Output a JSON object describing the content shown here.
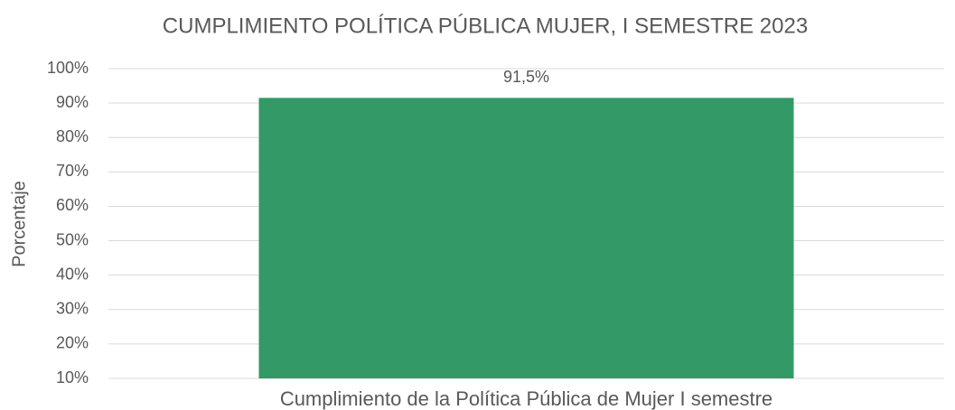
{
  "chart_data": {
    "type": "bar",
    "title": "CUMPLIMIENTO POLÍTICA PÚBLICA MUJER, I SEMESTRE 2023",
    "ylabel": "Porcentaje",
    "categories": [
      "Cumplimiento de la Política Pública de Mujer I semestre"
    ],
    "values": [
      91.5
    ],
    "value_labels": [
      "91,5%"
    ],
    "color": "#339966",
    "ylim": [
      10,
      100
    ],
    "yticks": [
      {
        "value": 10,
        "label": "10%"
      },
      {
        "value": 20,
        "label": "20%"
      },
      {
        "value": 30,
        "label": "30%"
      },
      {
        "value": 40,
        "label": "40%"
      },
      {
        "value": 50,
        "label": "50%"
      },
      {
        "value": 60,
        "label": "60%"
      },
      {
        "value": 70,
        "label": "70%"
      },
      {
        "value": 80,
        "label": "80%"
      },
      {
        "value": 90,
        "label": "90%"
      },
      {
        "value": 100,
        "label": "100%"
      }
    ],
    "grid": true
  }
}
